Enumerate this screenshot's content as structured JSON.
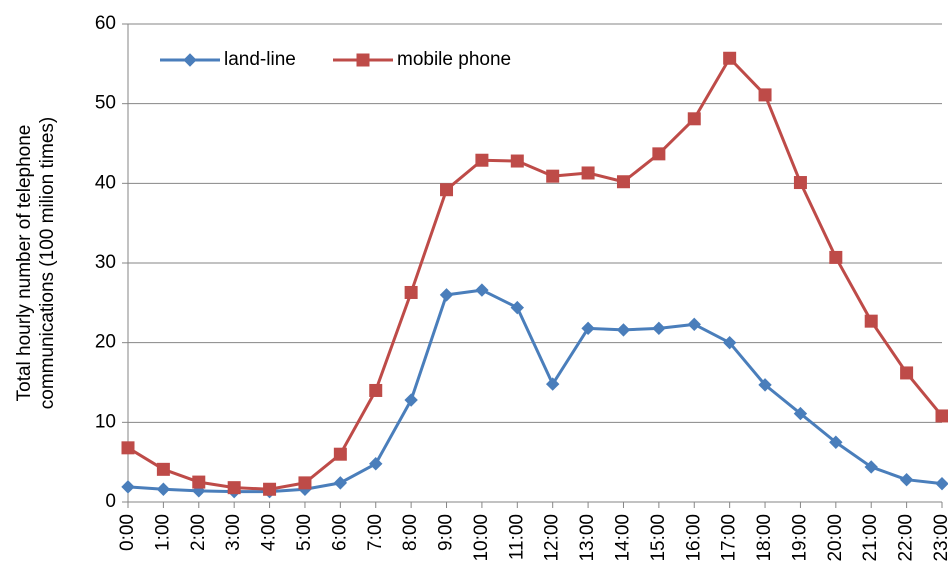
{
  "chart_data": {
    "type": "line",
    "y_label": [
      "Total hourly number of telephone",
      "communications (100 milion times)"
    ],
    "categories": [
      "0:00",
      "1:00",
      "2:00",
      "3:00",
      "4:00",
      "5:00",
      "6:00",
      "7:00",
      "8:00",
      "9:00",
      "10:00",
      "11:00",
      "12:00",
      "13:00",
      "14:00",
      "15:00",
      "16:00",
      "17:00",
      "18:00",
      "19:00",
      "20:00",
      "21:00",
      "22:00",
      "23:00"
    ],
    "series": [
      {
        "name": "land-line",
        "color": "#4a7ebb",
        "marker": "diamond",
        "values": [
          1.9,
          1.6,
          1.4,
          1.3,
          1.3,
          1.6,
          2.4,
          4.8,
          12.8,
          26.0,
          26.6,
          24.4,
          14.8,
          21.8,
          21.6,
          21.8,
          22.3,
          20.0,
          14.7,
          11.1,
          7.5,
          4.4,
          2.8,
          2.3
        ]
      },
      {
        "name": "mobile phone",
        "color": "#be4b48",
        "marker": "square",
        "values": [
          6.8,
          4.1,
          2.5,
          1.8,
          1.6,
          2.4,
          6.0,
          14.0,
          26.3,
          39.2,
          42.9,
          42.8,
          40.9,
          41.3,
          40.2,
          43.7,
          48.1,
          55.7,
          51.1,
          40.1,
          30.7,
          22.7,
          16.2,
          10.8
        ]
      }
    ],
    "ylim": [
      0,
      60
    ],
    "yticks": [
      0,
      10,
      20,
      30,
      40,
      50,
      60
    ],
    "grid": true,
    "legend": "upper-left"
  }
}
